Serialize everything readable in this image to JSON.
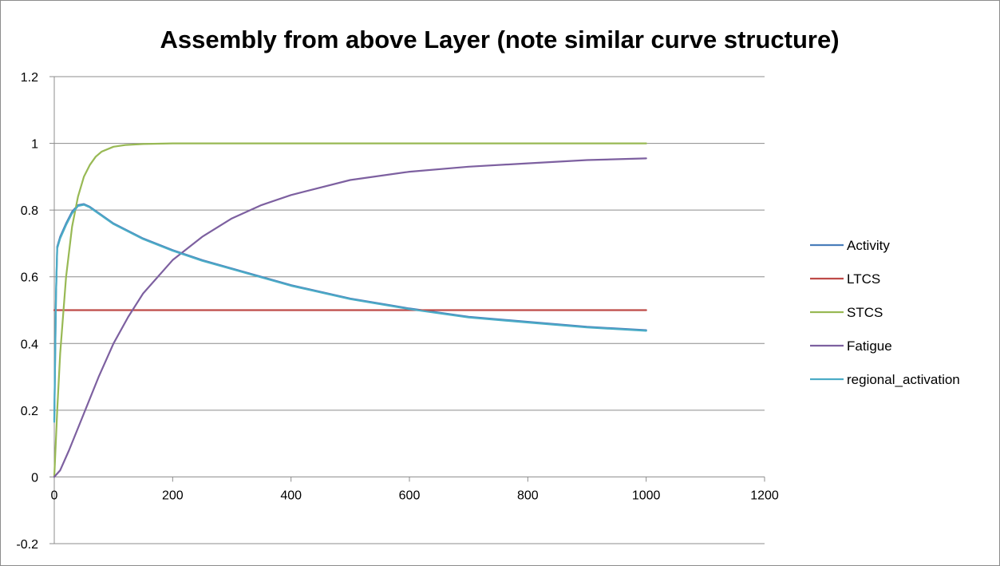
{
  "chart_data": {
    "type": "line",
    "title": "Assembly from above Layer (note similar curve structure)",
    "xlabel": "",
    "ylabel": "",
    "xlim": [
      0,
      1200
    ],
    "ylim": [
      -0.2,
      1.2
    ],
    "x_ticks": [
      "0",
      "200",
      "400",
      "600",
      "800",
      "1000",
      "1200"
    ],
    "y_ticks": [
      "-0.2",
      "0",
      "0.2",
      "0.4",
      "0.6",
      "0.8",
      "1",
      "1.2"
    ],
    "grid": "horizontal",
    "legend_position": "right",
    "series": [
      {
        "name": "Activity",
        "color": "#4a7ebb",
        "x": [
          0,
          3,
          5,
          10,
          20,
          30,
          40,
          50,
          60,
          80,
          100,
          150,
          200,
          250,
          300,
          400,
          500,
          600,
          700,
          800,
          900,
          1000
        ],
        "y": [
          0.17,
          0.55,
          0.69,
          0.72,
          0.76,
          0.795,
          0.815,
          0.818,
          0.81,
          0.785,
          0.76,
          0.715,
          0.68,
          0.65,
          0.625,
          0.575,
          0.535,
          0.505,
          0.48,
          0.465,
          0.45,
          0.44
        ]
      },
      {
        "name": "LTCS",
        "color": "#be4b48",
        "x": [
          0,
          1000
        ],
        "y": [
          0.5,
          0.5
        ]
      },
      {
        "name": "STCS",
        "color": "#98b954",
        "x": [
          0,
          5,
          10,
          20,
          30,
          40,
          50,
          60,
          70,
          80,
          100,
          120,
          150,
          200,
          300,
          500,
          1000
        ],
        "y": [
          0,
          0.2,
          0.37,
          0.6,
          0.75,
          0.84,
          0.9,
          0.935,
          0.96,
          0.975,
          0.99,
          0.995,
          0.998,
          1,
          1,
          1,
          1
        ]
      },
      {
        "name": "Fatigue",
        "color": "#7d60a0",
        "x": [
          0,
          10,
          25,
          50,
          75,
          100,
          125,
          150,
          200,
          250,
          300,
          350,
          400,
          500,
          600,
          700,
          800,
          900,
          1000
        ],
        "y": [
          0,
          0.02,
          0.08,
          0.19,
          0.3,
          0.4,
          0.48,
          0.55,
          0.65,
          0.72,
          0.775,
          0.815,
          0.845,
          0.89,
          0.915,
          0.93,
          0.94,
          0.95,
          0.955
        ]
      },
      {
        "name": "regional_activation",
        "color": "#4bacc6",
        "x": [
          0,
          3,
          5,
          10,
          20,
          30,
          40,
          50,
          60,
          80,
          100,
          150,
          200,
          250,
          300,
          400,
          500,
          600,
          700,
          800,
          900,
          1000
        ],
        "y": [
          0.165,
          0.55,
          0.685,
          0.715,
          0.755,
          0.79,
          0.812,
          0.816,
          0.808,
          0.783,
          0.758,
          0.713,
          0.678,
          0.648,
          0.623,
          0.573,
          0.533,
          0.503,
          0.478,
          0.463,
          0.448,
          0.438
        ]
      }
    ]
  }
}
